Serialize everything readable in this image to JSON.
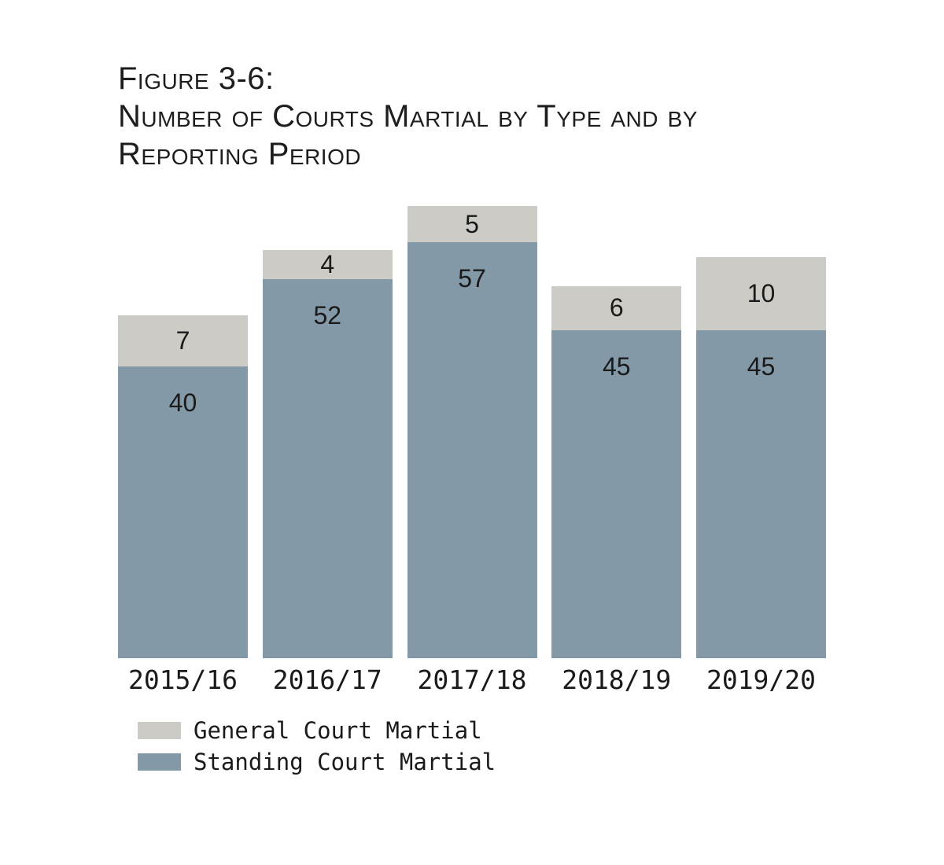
{
  "page": {
    "background": "#ffffff",
    "text_color": "#1a1a1a"
  },
  "chart_data": {
    "type": "bar",
    "stacked": true,
    "title": "Figure 3-6: Number of Courts Martial by Type and by Reporting Period",
    "title_lines": [
      "Figure 3-6:",
      "Number of Courts Martial by Type and by",
      "Reporting Period"
    ],
    "categories": [
      "2015/16",
      "2016/17",
      "2017/18",
      "2018/19",
      "2019/20"
    ],
    "series": [
      {
        "name": "Standing Court Martial",
        "color": "#8399A8",
        "values": [
          40,
          52,
          57,
          45,
          45
        ]
      },
      {
        "name": "General Court Martial",
        "color": "#CCCBC5",
        "values": [
          7,
          4,
          5,
          6,
          10
        ]
      }
    ],
    "totals": [
      47,
      56,
      62,
      51,
      55
    ],
    "ylim": [
      0,
      62
    ],
    "grid": false,
    "xlabel": "",
    "ylabel": "",
    "legend_position": "bottom-left",
    "legend": [
      {
        "label": "General Court Martial",
        "color": "#CCCBC5"
      },
      {
        "label": "Standing Court Martial",
        "color": "#8399A8"
      }
    ]
  }
}
